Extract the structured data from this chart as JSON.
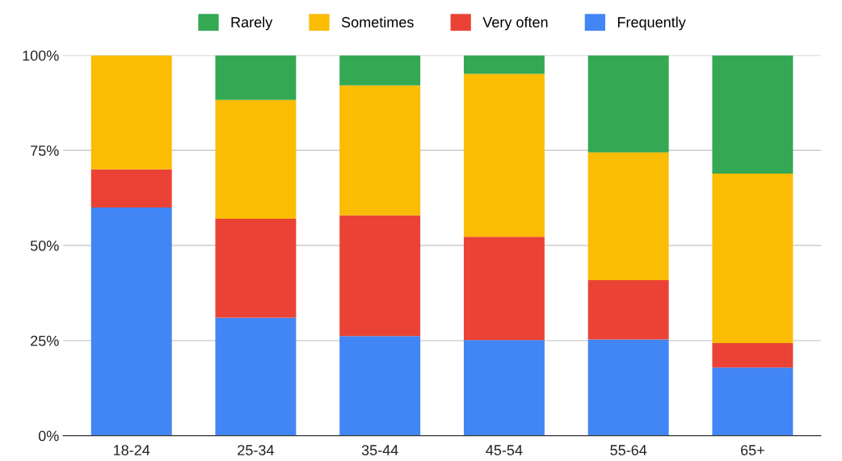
{
  "chart_data": {
    "type": "bar",
    "stacked": true,
    "categories": [
      "18-24",
      "25-34",
      "35-44",
      "45-54",
      "55-64",
      "65+"
    ],
    "series": [
      {
        "name": "Frequently",
        "color": "#4285f4",
        "values": [
          60,
          31,
          26.2,
          25.1,
          25.3,
          17.9
        ]
      },
      {
        "name": "Very often",
        "color": "#ea4335",
        "values": [
          10,
          26,
          31.7,
          27.2,
          15.6,
          6.4
        ]
      },
      {
        "name": "Sometimes",
        "color": "#fbbc04",
        "values": [
          30,
          31.3,
          34.2,
          42.8,
          33.6,
          44.6
        ]
      },
      {
        "name": "Rarely",
        "color": "#34a853",
        "values": [
          0,
          11.7,
          7.9,
          4.9,
          25.5,
          31.1
        ]
      }
    ],
    "ylim": [
      0,
      100
    ],
    "yticks": [
      {
        "value": 0,
        "label": "0%"
      },
      {
        "value": 25,
        "label": "25%"
      },
      {
        "value": 50,
        "label": "50%"
      },
      {
        "value": 75,
        "label": "75%"
      },
      {
        "value": 100,
        "label": "100%"
      }
    ],
    "grid": "y",
    "legend": "top"
  }
}
